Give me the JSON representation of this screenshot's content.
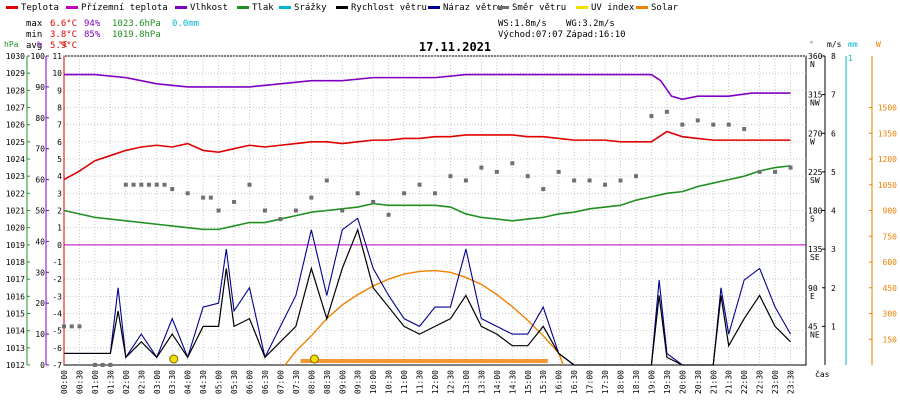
{
  "chart_data": {
    "type": "line",
    "title": "17.11.2021",
    "legend": {
      "placement": "top",
      "items": [
        {
          "label": "Teplota",
          "color": "#e00000"
        },
        {
          "label": "Přízemní teplota",
          "color": "#c000c0"
        },
        {
          "label": "Vlhkost",
          "color": "#8000c0"
        },
        {
          "label": "Tlak",
          "color": "#209020"
        },
        {
          "label": "Srážky",
          "color": "#00b8d0"
        },
        {
          "label": "Rychlost větru",
          "color": "#000000"
        },
        {
          "label": "Náraz větru",
          "color": "#000090"
        },
        {
          "label": "Směr větru",
          "color": "#707070"
        },
        {
          "label": "UV index",
          "color": "#f0e000"
        },
        {
          "label": "Solar",
          "color": "#f08000"
        }
      ]
    },
    "stats": {
      "max": {
        "label": "max",
        "temp": "6.6°C",
        "hum": "94%",
        "press": "1023.6hPa",
        "rain": "0.0mm"
      },
      "min": {
        "label": "min",
        "temp": "3.8°C",
        "hum": "85%",
        "press": "1019.8hPa"
      },
      "avg": {
        "label": "avg",
        "temp": "5.9°C"
      }
    },
    "wind_info": {
      "ws": "WS:1.8m/s",
      "wg": "WG:3.2m/s"
    },
    "sun_info": {
      "sunrise": "Východ:07:07",
      "sunset": "Západ:16:10"
    },
    "axes": {
      "left_units": {
        "press": "hPa",
        "hum": "%",
        "temp": "°C"
      },
      "right_units": {
        "dir": "°",
        "wind": "m/s",
        "rain": "mm",
        "solar": "W"
      },
      "x_unit": "čas",
      "press_ticks": [
        "1012",
        "1013",
        "1014",
        "1015",
        "1016",
        "1017",
        "1018",
        "1019",
        "1020",
        "1021",
        "1022",
        "1023",
        "1024",
        "1025",
        "1026",
        "1027",
        "1028",
        "1029",
        "1030"
      ],
      "hum_ticks": [
        "0",
        "10",
        "20",
        "30",
        "40",
        "50",
        "60",
        "70",
        "80",
        "90",
        "100"
      ],
      "temp_ticks": [
        "-7",
        "-6",
        "-5",
        "-4",
        "-3",
        "-2",
        "-1",
        "0",
        "1",
        "2",
        "3",
        "4",
        "5",
        "6",
        "7",
        "8",
        "9",
        "10",
        "11"
      ],
      "dir_ticks": [
        {
          "deg": "45",
          "name": "NE"
        },
        {
          "deg": "90",
          "name": "E"
        },
        {
          "deg": "135",
          "name": "SE"
        },
        {
          "deg": "180",
          "name": "S"
        },
        {
          "deg": "225",
          "name": "SW"
        },
        {
          "deg": "270",
          "name": "W"
        },
        {
          "deg": "315",
          "name": "NW"
        },
        {
          "deg": "360",
          "name": "N"
        }
      ],
      "wind_ticks": [
        "1",
        "2",
        "3",
        "4",
        "5",
        "6",
        "7",
        "8"
      ],
      "rain_ticks": [
        "1"
      ],
      "solar_ticks": [
        "150",
        "300",
        "450",
        "600",
        "750",
        "900",
        "1050",
        "1200",
        "1350",
        "1500"
      ],
      "ylim": {
        "temp": [
          -7,
          11
        ],
        "hum": [
          0,
          100
        ],
        "press": [
          1012,
          1030
        ],
        "dir": [
          0,
          360
        ],
        "wind": [
          0,
          8
        ],
        "solar": [
          0,
          1800
        ]
      }
    },
    "x_ticks": [
      "00:00",
      "00:30",
      "01:00",
      "01:30",
      "02:00",
      "02:30",
      "03:00",
      "03:30",
      "04:00",
      "04:30",
      "05:00",
      "05:30",
      "06:00",
      "06:30",
      "07:00",
      "07:30",
      "08:00",
      "08:30",
      "09:00",
      "09:30",
      "10:00",
      "10:30",
      "11:00",
      "11:30",
      "12:00",
      "12:30",
      "13:00",
      "13:30",
      "14:00",
      "14:30",
      "15:00",
      "15:30",
      "16:00",
      "16:30",
      "17:00",
      "17:30",
      "18:00",
      "18:30",
      "19:00",
      "19:30",
      "20:00",
      "20:30",
      "21:00",
      "21:30",
      "22:00",
      "22:30",
      "23:00",
      "23:30"
    ],
    "series": [
      {
        "name": "Teplota",
        "axis": "temp",
        "color": "#e00000",
        "points": [
          [
            0,
            3.8
          ],
          [
            1,
            4.3
          ],
          [
            2,
            4.9
          ],
          [
            3,
            5.2
          ],
          [
            4,
            5.5
          ],
          [
            5,
            5.7
          ],
          [
            6,
            5.8
          ],
          [
            7,
            5.7
          ],
          [
            8,
            5.9
          ],
          [
            9,
            5.5
          ],
          [
            10,
            5.4
          ],
          [
            11,
            5.6
          ],
          [
            12,
            5.8
          ],
          [
            13,
            5.7
          ],
          [
            14,
            5.8
          ],
          [
            15,
            5.9
          ],
          [
            16,
            6.0
          ],
          [
            17,
            6.0
          ],
          [
            18,
            5.9
          ],
          [
            19,
            6.0
          ],
          [
            20,
            6.1
          ],
          [
            21,
            6.1
          ],
          [
            22,
            6.2
          ],
          [
            23,
            6.2
          ],
          [
            24,
            6.3
          ],
          [
            25,
            6.3
          ],
          [
            26,
            6.4
          ],
          [
            27,
            6.4
          ],
          [
            28,
            6.4
          ],
          [
            29,
            6.4
          ],
          [
            30,
            6.3
          ],
          [
            31,
            6.3
          ],
          [
            32,
            6.2
          ],
          [
            33,
            6.1
          ],
          [
            34,
            6.1
          ],
          [
            35,
            6.1
          ],
          [
            36,
            6.0
          ],
          [
            37,
            6.0
          ],
          [
            38,
            6.0
          ],
          [
            39,
            6.6
          ],
          [
            40,
            6.3
          ],
          [
            41,
            6.2
          ],
          [
            42,
            6.1
          ],
          [
            43,
            6.1
          ],
          [
            44,
            6.1
          ],
          [
            45,
            6.1
          ],
          [
            46,
            6.1
          ],
          [
            47,
            6.1
          ]
        ]
      },
      {
        "name": "Vlhkost",
        "axis": "hum",
        "color": "#8000c0",
        "points": [
          [
            0,
            94
          ],
          [
            2,
            94
          ],
          [
            4,
            93
          ],
          [
            6,
            91
          ],
          [
            8,
            90
          ],
          [
            10,
            90
          ],
          [
            12,
            90
          ],
          [
            14,
            91
          ],
          [
            16,
            92
          ],
          [
            18,
            92
          ],
          [
            20,
            93
          ],
          [
            22,
            93
          ],
          [
            24,
            93
          ],
          [
            26,
            94
          ],
          [
            28,
            94
          ],
          [
            30,
            94
          ],
          [
            32,
            94
          ],
          [
            34,
            94
          ],
          [
            36,
            94
          ],
          [
            38,
            94
          ],
          [
            38.6,
            92
          ],
          [
            39.3,
            87
          ],
          [
            40,
            86
          ],
          [
            41,
            87
          ],
          [
            43,
            87
          ],
          [
            44.5,
            88
          ],
          [
            47,
            88
          ]
        ]
      },
      {
        "name": "Přízemní teplota",
        "axis": "temp",
        "color": "#c000c0",
        "points": [
          [
            0,
            0
          ],
          [
            47.8,
            0
          ]
        ]
      },
      {
        "name": "Tlak",
        "axis": "press",
        "color": "#209020",
        "points": [
          [
            0,
            1021.0
          ],
          [
            2,
            1020.6
          ],
          [
            4,
            1020.4
          ],
          [
            6,
            1020.2
          ],
          [
            8,
            1020.0
          ],
          [
            9,
            1019.9
          ],
          [
            10,
            1019.9
          ],
          [
            11,
            1020.1
          ],
          [
            12,
            1020.3
          ],
          [
            13,
            1020.3
          ],
          [
            14,
            1020.5
          ],
          [
            15,
            1020.7
          ],
          [
            16,
            1020.9
          ],
          [
            17,
            1021.0
          ],
          [
            18,
            1021.1
          ],
          [
            19,
            1021.2
          ],
          [
            20,
            1021.4
          ],
          [
            21,
            1021.3
          ],
          [
            22,
            1021.3
          ],
          [
            23,
            1021.3
          ],
          [
            24,
            1021.3
          ],
          [
            25,
            1021.2
          ],
          [
            26,
            1020.8
          ],
          [
            27,
            1020.6
          ],
          [
            28,
            1020.5
          ],
          [
            29,
            1020.4
          ],
          [
            30,
            1020.5
          ],
          [
            31,
            1020.6
          ],
          [
            32,
            1020.8
          ],
          [
            33,
            1020.9
          ],
          [
            34,
            1021.1
          ],
          [
            35,
            1021.2
          ],
          [
            36,
            1021.3
          ],
          [
            37,
            1021.6
          ],
          [
            38,
            1021.8
          ],
          [
            39,
            1022.0
          ],
          [
            40,
            1022.1
          ],
          [
            41,
            1022.4
          ],
          [
            42,
            1022.6
          ],
          [
            43,
            1022.8
          ],
          [
            44,
            1023.0
          ],
          [
            45,
            1023.3
          ],
          [
            46,
            1023.5
          ],
          [
            47,
            1023.6
          ]
        ]
      },
      {
        "name": "Solar",
        "axis": "solar",
        "color": "#f08000",
        "points": [
          [
            14.3,
            0
          ],
          [
            15,
            80
          ],
          [
            16,
            170
          ],
          [
            17,
            270
          ],
          [
            18,
            350
          ],
          [
            19,
            410
          ],
          [
            20,
            460
          ],
          [
            21,
            500
          ],
          [
            22,
            530
          ],
          [
            23,
            545
          ],
          [
            24,
            550
          ],
          [
            25,
            540
          ],
          [
            26,
            510
          ],
          [
            27,
            470
          ],
          [
            28,
            410
          ],
          [
            29,
            340
          ],
          [
            30,
            260
          ],
          [
            31,
            170
          ],
          [
            32,
            70
          ],
          [
            32.3,
            0
          ]
        ]
      }
    ],
    "wind_speed": [
      [
        0,
        0.3
      ],
      [
        1,
        0.3
      ],
      [
        2,
        0.3
      ],
      [
        3,
        0.3
      ],
      [
        3.5,
        1.4
      ],
      [
        4,
        0.2
      ],
      [
        5,
        0.6
      ],
      [
        6,
        0.2
      ],
      [
        7,
        0.8
      ],
      [
        8,
        0.2
      ],
      [
        9,
        1.0
      ],
      [
        10,
        1.0
      ],
      [
        10.5,
        2.5
      ],
      [
        11,
        1.0
      ],
      [
        12,
        1.2
      ],
      [
        13,
        0.2
      ],
      [
        14,
        0.6
      ],
      [
        15,
        1.0
      ],
      [
        16,
        2.5
      ],
      [
        17,
        1.2
      ],
      [
        18,
        2.5
      ],
      [
        19,
        3.5
      ],
      [
        20,
        2.0
      ],
      [
        21,
        1.5
      ],
      [
        22,
        1.0
      ],
      [
        23,
        0.8
      ],
      [
        24,
        1.0
      ],
      [
        25,
        1.2
      ],
      [
        26,
        1.8
      ],
      [
        27,
        1.0
      ],
      [
        28,
        0.8
      ],
      [
        29,
        0.5
      ],
      [
        30,
        0.5
      ],
      [
        31,
        1.0
      ],
      [
        32,
        0.3
      ],
      [
        33,
        0.0
      ],
      [
        38,
        0.0
      ],
      [
        38.5,
        1.8
      ],
      [
        39,
        0.2
      ],
      [
        40,
        0.0
      ],
      [
        42,
        0.0
      ],
      [
        42.5,
        1.8
      ],
      [
        43,
        0.5
      ],
      [
        44,
        1.2
      ],
      [
        45,
        1.8
      ],
      [
        46,
        1.0
      ],
      [
        47,
        0.6
      ]
    ],
    "wind_gust": [
      [
        0,
        0.3
      ],
      [
        3,
        0.3
      ],
      [
        3.5,
        2.0
      ],
      [
        4,
        0.2
      ],
      [
        5,
        0.8
      ],
      [
        6,
        0.2
      ],
      [
        7,
        1.2
      ],
      [
        8,
        0.2
      ],
      [
        9,
        1.5
      ],
      [
        10,
        1.6
      ],
      [
        10.5,
        3.0
      ],
      [
        11,
        1.4
      ],
      [
        12,
        2.0
      ],
      [
        13,
        0.2
      ],
      [
        14,
        1.0
      ],
      [
        15,
        1.8
      ],
      [
        16,
        3.5
      ],
      [
        17,
        1.8
      ],
      [
        18,
        3.5
      ],
      [
        19,
        3.8
      ],
      [
        20,
        2.5
      ],
      [
        21,
        1.8
      ],
      [
        22,
        1.2
      ],
      [
        23,
        1.0
      ],
      [
        24,
        1.5
      ],
      [
        25,
        1.5
      ],
      [
        26,
        3.0
      ],
      [
        27,
        1.2
      ],
      [
        28,
        1.0
      ],
      [
        29,
        0.8
      ],
      [
        30,
        0.8
      ],
      [
        31,
        1.5
      ],
      [
        32,
        0.3
      ],
      [
        33,
        0.0
      ],
      [
        38,
        0.0
      ],
      [
        38.5,
        2.2
      ],
      [
        39,
        0.3
      ],
      [
        40,
        0.0
      ],
      [
        42,
        0.0
      ],
      [
        42.5,
        2.0
      ],
      [
        43,
        0.8
      ],
      [
        44,
        2.2
      ],
      [
        45,
        2.5
      ],
      [
        46,
        1.5
      ],
      [
        47,
        0.8
      ]
    ],
    "wind_dir": [
      [
        0,
        45
      ],
      [
        0.5,
        45
      ],
      [
        1,
        45
      ],
      [
        2,
        0
      ],
      [
        2.5,
        0
      ],
      [
        3,
        0
      ],
      [
        4,
        210
      ],
      [
        4.5,
        210
      ],
      [
        5,
        210
      ],
      [
        5.5,
        210
      ],
      [
        6,
        210
      ],
      [
        6.5,
        210
      ],
      [
        7,
        205
      ],
      [
        8,
        200
      ],
      [
        9,
        195
      ],
      [
        9.5,
        195
      ],
      [
        10,
        180
      ],
      [
        11,
        190
      ],
      [
        12,
        210
      ],
      [
        13,
        180
      ],
      [
        14,
        170
      ],
      [
        15,
        180
      ],
      [
        16,
        195
      ],
      [
        17,
        215
      ],
      [
        18,
        180
      ],
      [
        19,
        200
      ],
      [
        20,
        190
      ],
      [
        21,
        175
      ],
      [
        22,
        200
      ],
      [
        23,
        210
      ],
      [
        24,
        200
      ],
      [
        25,
        220
      ],
      [
        26,
        215
      ],
      [
        27,
        230
      ],
      [
        28,
        225
      ],
      [
        29,
        235
      ],
      [
        30,
        220
      ],
      [
        31,
        205
      ],
      [
        32,
        225
      ],
      [
        33,
        215
      ],
      [
        34,
        215
      ],
      [
        35,
        210
      ],
      [
        36,
        215
      ],
      [
        37,
        220
      ],
      [
        38,
        290
      ],
      [
        39,
        295
      ],
      [
        40,
        280
      ],
      [
        41,
        285
      ],
      [
        42,
        280
      ],
      [
        43,
        280
      ],
      [
        44,
        275
      ],
      [
        45,
        225
      ],
      [
        46,
        225
      ],
      [
        47,
        230
      ]
    ],
    "sun_markers": [
      7.1,
      16.2
    ]
  }
}
